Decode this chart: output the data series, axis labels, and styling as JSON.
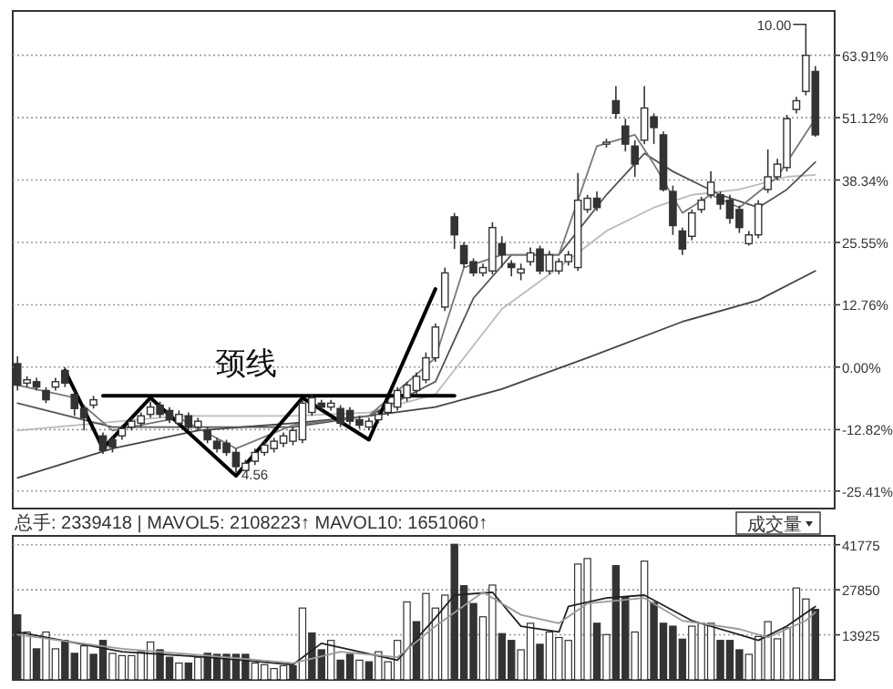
{
  "chart_data": [
    {
      "type": "candlestick",
      "color": "#333333",
      "grid": "y",
      "tick_labels": "y",
      "ylim": [
        -29,
        73
      ],
      "yticks": [
        {
          "value": -25.41,
          "label": "-25.41%"
        },
        {
          "value": -12.82,
          "label": "-12.82%"
        },
        {
          "value": 0,
          "label": "0.00%"
        },
        {
          "value": 12.76,
          "label": "12.76%"
        },
        {
          "value": 25.55,
          "label": "25.55%"
        },
        {
          "value": 38.34,
          "label": "38.34%"
        },
        {
          "value": 51.12,
          "label": "51.12%"
        },
        {
          "value": 63.91,
          "label": "63.91%"
        }
      ],
      "categories": [
        null,
        null,
        null,
        null,
        null,
        null,
        null,
        null,
        null,
        null,
        null,
        null,
        null,
        null,
        null,
        null,
        null,
        null,
        null,
        null,
        null,
        null,
        null,
        null,
        null,
        null,
        null,
        null,
        null,
        null,
        null,
        null,
        null,
        null,
        null,
        null,
        null,
        null,
        null,
        null,
        null,
        null,
        null,
        null,
        null,
        null,
        null,
        null,
        null,
        null,
        null,
        null,
        null,
        null,
        null,
        null,
        null,
        null,
        null,
        null,
        null,
        null,
        null,
        null,
        null,
        null,
        null,
        null,
        null,
        null,
        null,
        null,
        null,
        null,
        null,
        null,
        null,
        null,
        null,
        null,
        null,
        null,
        null,
        null,
        null
      ],
      "ohlc": [
        [
          0.7,
          2.2,
          -4.8,
          -3.7
        ],
        [
          -3.3,
          -1.9,
          -4.1,
          -2.6
        ],
        [
          -3.0,
          -2.2,
          -4.8,
          -4.1
        ],
        [
          -4.8,
          -4.1,
          -7.4,
          -6.7
        ],
        [
          -4.1,
          -2.2,
          -4.8,
          -3.0
        ],
        [
          -0.7,
          0,
          -4.1,
          -3.3
        ],
        [
          -5.6,
          -4.8,
          -10.0,
          -8.5
        ],
        [
          -8.5,
          -7.8,
          -13.0,
          -10.4
        ],
        [
          -7.8,
          -5.9,
          -8.5,
          -6.7
        ],
        [
          -14.1,
          -13.4,
          -17.8,
          -17.1
        ],
        [
          -14.9,
          -14.1,
          -17.5,
          -16.4
        ],
        [
          -14.1,
          -11.9,
          -14.9,
          -12.6
        ],
        [
          -12.3,
          -10.4,
          -13.0,
          -11.1
        ],
        [
          -11.5,
          -9.3,
          -12.3,
          -10.0
        ],
        [
          -9.7,
          -7.1,
          -10.4,
          -8.2
        ],
        [
          -7.8,
          -7.1,
          -10.4,
          -9.7
        ],
        [
          -8.9,
          -8.2,
          -11.5,
          -10.8
        ],
        [
          -11.5,
          -8.9,
          -12.3,
          -9.7
        ],
        [
          -10.0,
          -9.3,
          -13.0,
          -12.3
        ],
        [
          -12.3,
          -10.4,
          -13.0,
          -11.1
        ],
        [
          -13.0,
          -12.3,
          -15.6,
          -14.9
        ],
        [
          -15.2,
          -14.5,
          -17.5,
          -16.7
        ],
        [
          -15.6,
          -14.9,
          -18.2,
          -17.5
        ],
        [
          -17.5,
          -16.7,
          -21.6,
          -20.4
        ],
        [
          -21.2,
          -19.0,
          -21.2,
          -19.7
        ],
        [
          -19.3,
          -16.7,
          -20.1,
          -17.5
        ],
        [
          -17.5,
          -15.2,
          -18.2,
          -16.0
        ],
        [
          -16.7,
          -14.5,
          -17.5,
          -15.2
        ],
        [
          -15.6,
          -13.4,
          -16.4,
          -14.1
        ],
        [
          -15.2,
          -12.3,
          -16.0,
          -13.0
        ],
        [
          -14.9,
          -6.7,
          -15.6,
          -7.4
        ],
        [
          -9.3,
          -5.6,
          -10.0,
          -6.3
        ],
        [
          -7.4,
          -6.7,
          -8.9,
          -8.2
        ],
        [
          -8.2,
          -6.7,
          -8.9,
          -7.4
        ],
        [
          -8.5,
          -7.8,
          -12.3,
          -11.5
        ],
        [
          -8.9,
          -8.2,
          -11.9,
          -11.1
        ],
        [
          -10.8,
          -10.0,
          -12.6,
          -11.9
        ],
        [
          -12.3,
          -10.4,
          -13.0,
          -11.1
        ],
        [
          -10.8,
          -8.9,
          -11.5,
          -9.7
        ],
        [
          -9.3,
          -6.7,
          -10.0,
          -7.4
        ],
        [
          -8.2,
          -4.1,
          -8.9,
          -4.8
        ],
        [
          -6.3,
          -3.0,
          -7.1,
          -3.7
        ],
        [
          -4.8,
          -1.1,
          -5.6,
          -1.9
        ],
        [
          -2.6,
          3.0,
          -3.3,
          1.9
        ],
        [
          1.9,
          8.9,
          1.1,
          8.2
        ],
        [
          12.3,
          20.4,
          11.5,
          19.3
        ],
        [
          30.8,
          31.6,
          24.2,
          27.1
        ],
        [
          24.9,
          25.6,
          20.4,
          21.2
        ],
        [
          21.6,
          22.3,
          18.6,
          19.3
        ],
        [
          19.3,
          21.2,
          18.6,
          20.4
        ],
        [
          19.7,
          29.7,
          19.0,
          28.6
        ],
        [
          25.3,
          26.8,
          20.4,
          23.0
        ],
        [
          21.2,
          21.9,
          18.6,
          20.4
        ],
        [
          19.3,
          21.2,
          17.8,
          20.1
        ],
        [
          21.6,
          24.5,
          20.8,
          23.4
        ],
        [
          24.2,
          24.9,
          19.0,
          19.7
        ],
        [
          19.7,
          23.8,
          19.0,
          23.0
        ],
        [
          19.7,
          22.3,
          19.0,
          21.6
        ],
        [
          21.6,
          23.8,
          20.8,
          23.0
        ],
        [
          20.4,
          39.8,
          19.7,
          34.2
        ],
        [
          32.3,
          35.3,
          31.6,
          34.6
        ],
        [
          34.6,
          36.0,
          32.0,
          32.7
        ],
        [
          45.7,
          46.8,
          45.0,
          46.1
        ],
        [
          54.6,
          57.6,
          50.9,
          52.0
        ],
        [
          49.4,
          50.9,
          44.2,
          45.7
        ],
        [
          45.3,
          46.5,
          39.0,
          41.6
        ],
        [
          46.5,
          57.6,
          45.7,
          53.1
        ],
        [
          51.3,
          52.0,
          45.7,
          49.1
        ],
        [
          47.6,
          48.3,
          36.0,
          36.4
        ],
        [
          36.0,
          37.2,
          27.1,
          29.0
        ],
        [
          27.9,
          28.6,
          23.0,
          24.2
        ],
        [
          26.8,
          32.3,
          26.0,
          31.6
        ],
        [
          32.3,
          34.9,
          31.6,
          34.2
        ],
        [
          35.3,
          40.1,
          34.6,
          37.9
        ],
        [
          35.3,
          36.0,
          32.3,
          33.4
        ],
        [
          34.2,
          35.3,
          29.4,
          30.5
        ],
        [
          32.3,
          33.1,
          27.5,
          28.6
        ],
        [
          25.3,
          27.9,
          24.9,
          27.1
        ],
        [
          27.1,
          34.2,
          26.4,
          33.4
        ],
        [
          36.4,
          44.6,
          35.7,
          39.0
        ],
        [
          39.0,
          42.7,
          38.3,
          41.6
        ],
        [
          40.9,
          51.7,
          40.1,
          50.9
        ],
        [
          52.8,
          55.4,
          52.0,
          54.6
        ],
        [
          56.5,
          69.5,
          55.7,
          63.9
        ],
        [
          60.6,
          61.7,
          47.2,
          47.6
        ]
      ],
      "series": [
        {
          "type": "line",
          "color": "#444444",
          "values": [
            -22.7,
            null,
            null,
            null,
            null,
            null,
            null,
            null,
            null,
            null,
            -16.7,
            null,
            null,
            null,
            null,
            null,
            null,
            null,
            null,
            -13.0,
            null,
            null,
            null,
            null,
            null,
            null,
            null,
            null,
            null,
            -11.5,
            null,
            null,
            null,
            null,
            null,
            null,
            null,
            -10.0,
            null,
            null,
            null,
            null,
            null,
            null,
            -8.2,
            null,
            null,
            null,
            null,
            null,
            null,
            -4.5,
            null,
            null,
            null,
            null,
            null,
            null,
            null,
            null,
            1.9,
            null,
            null,
            null,
            null,
            null,
            null,
            null,
            null,
            null,
            9.3,
            null,
            null,
            null,
            null,
            null,
            null,
            null,
            13.7,
            null,
            null,
            null,
            null,
            null,
            19.7
          ]
        },
        {
          "type": "line",
          "color": "#bbbbbb",
          "values": [
            -13.0,
            null,
            null,
            null,
            null,
            null,
            null,
            null,
            null,
            null,
            null,
            null,
            null,
            null,
            null,
            null,
            null,
            -10.0,
            null,
            null,
            null,
            null,
            null,
            null,
            null,
            null,
            null,
            null,
            null,
            -10.0,
            null,
            null,
            null,
            null,
            null,
            null,
            null,
            -9.3,
            null,
            null,
            null,
            null,
            null,
            null,
            -5.6,
            null,
            null,
            null,
            null,
            null,
            null,
            11.9,
            null,
            null,
            null,
            null,
            null,
            20.4,
            null,
            null,
            null,
            null,
            27.9,
            null,
            null,
            null,
            null,
            32.7,
            null,
            null,
            null,
            35.3,
            null,
            null,
            null,
            null,
            36.4,
            null,
            null,
            null,
            null,
            39.0,
            null,
            null,
            39.4
          ]
        },
        {
          "type": "line",
          "color": "#555555",
          "values": [
            -7.4,
            null,
            null,
            null,
            null,
            null,
            null,
            null,
            null,
            null,
            -12.3,
            null,
            null,
            null,
            null,
            null,
            null,
            null,
            null,
            -12.3,
            null,
            null,
            null,
            null,
            null,
            null,
            null,
            null,
            null,
            -12.3,
            null,
            null,
            null,
            null,
            null,
            null,
            null,
            -10.0,
            null,
            null,
            null,
            null,
            null,
            null,
            -3.0,
            null,
            null,
            null,
            14.1,
            null,
            null,
            null,
            23.0,
            null,
            null,
            null,
            null,
            23.0,
            null,
            null,
            null,
            null,
            35.3,
            null,
            null,
            null,
            43.8,
            null,
            null,
            40.1,
            null,
            null,
            null,
            null,
            35.3,
            null,
            null,
            null,
            32.7,
            null,
            null,
            36.4,
            null,
            null,
            42.0
          ]
        },
        {
          "type": "line",
          "color": "#777777",
          "values": [
            -3.7,
            null,
            null,
            null,
            null,
            null,
            -6.3,
            null,
            null,
            null,
            -13.0,
            null,
            null,
            null,
            null,
            null,
            null,
            -10.4,
            null,
            null,
            null,
            null,
            null,
            -16.7,
            null,
            null,
            null,
            null,
            null,
            -11.9,
            null,
            null,
            null,
            null,
            null,
            null,
            null,
            -10.0,
            null,
            null,
            null,
            null,
            null,
            null,
            1.9,
            null,
            null,
            20.4,
            null,
            null,
            null,
            23.0,
            null,
            null,
            null,
            null,
            null,
            23.0,
            null,
            null,
            null,
            45.3,
            null,
            null,
            null,
            47.6,
            null,
            41.6,
            null,
            null,
            31.6,
            null,
            null,
            35.3,
            null,
            null,
            32.7,
            null,
            null,
            null,
            39.0,
            null,
            null,
            null,
            50.9
          ]
        },
        {
          "type": "line",
          "color": "#000000",
          "values": [
            null,
            null,
            null,
            null,
            null,
            -0.7,
            null,
            null,
            null,
            -16.7,
            null,
            null,
            null,
            null,
            -6.3,
            null,
            null,
            null,
            null,
            null,
            null,
            null,
            null,
            -22.3,
            null,
            null,
            null,
            null,
            null,
            null,
            -6.3,
            null,
            null,
            null,
            null,
            null,
            null,
            -14.9,
            null,
            null,
            null,
            null,
            null,
            null,
            16.0,
            null,
            null,
            null,
            null,
            null,
            null,
            null,
            null,
            null,
            null,
            null,
            null,
            null,
            null,
            null,
            null,
            null,
            null,
            null,
            null,
            null,
            null,
            null,
            null,
            null,
            null,
            null,
            null,
            null,
            null,
            null,
            null,
            null,
            null,
            null,
            null,
            null,
            null,
            null,
            null
          ]
        },
        {
          "type": "line",
          "color": "#000000",
          "name": "颈线",
          "values": [
            null,
            null,
            null,
            null,
            null,
            null,
            null,
            null,
            null,
            -5.9,
            null,
            null,
            null,
            null,
            null,
            null,
            null,
            null,
            null,
            null,
            null,
            null,
            null,
            null,
            null,
            null,
            null,
            null,
            null,
            null,
            null,
            null,
            null,
            null,
            null,
            null,
            null,
            null,
            null,
            null,
            null,
            null,
            null,
            null,
            null,
            null,
            -5.9,
            null,
            null,
            null,
            null,
            null,
            null,
            null,
            null,
            null,
            null,
            null,
            null,
            null,
            null,
            null,
            null,
            null,
            null,
            null,
            null,
            null,
            null,
            null,
            null,
            null,
            null,
            null,
            null,
            null,
            null,
            null,
            null,
            null,
            null,
            null,
            null,
            null,
            null
          ]
        }
      ],
      "annotations": [
        "10.00",
        {
          "text": "4.56",
          "y": -21.6
        }
      ]
    },
    {
      "type": "bar",
      "grid": "y",
      "tick_labels": "y",
      "ylim": [
        0,
        44500
      ],
      "yticks": [
        13925,
        27850,
        41775
      ],
      "title": "总手: 2339418 | MAVOL5: 2108223↑ MAVOL10: 1651060↑",
      "annotations": [
        "成交量"
      ],
      "categories": [
        null,
        null,
        null,
        null,
        null,
        null,
        null,
        null,
        null,
        null,
        null,
        null,
        null,
        null,
        null,
        null,
        null,
        null,
        null,
        null,
        null,
        null,
        null,
        null,
        null,
        null,
        null,
        null,
        null,
        null,
        null,
        null,
        null,
        null,
        null,
        null,
        null,
        null,
        null,
        null,
        null,
        null,
        null,
        null,
        null,
        null,
        null,
        null,
        null,
        null,
        null,
        null,
        null,
        null,
        null,
        null,
        null,
        null,
        null,
        null,
        null,
        null,
        null,
        null,
        null,
        null,
        null,
        null,
        null,
        null,
        null,
        null,
        null,
        null,
        null,
        null,
        null,
        null,
        null,
        null,
        null,
        null,
        null,
        null,
        null
      ],
      "values": [
        20100,
        14800,
        9600,
        14800,
        9600,
        12200,
        8200,
        10500,
        7900,
        12200,
        8200,
        7500,
        7500,
        8700,
        11700,
        9300,
        7000,
        5200,
        5200,
        7000,
        8200,
        7900,
        7900,
        7900,
        7900,
        5200,
        4700,
        3500,
        4400,
        4400,
        22200,
        14500,
        9300,
        12200,
        6100,
        7900,
        6100,
        5600,
        8700,
        5600,
        12200,
        24100,
        18000,
        26700,
        22200,
        26200,
        41900,
        29100,
        23600,
        19500,
        29300,
        14300,
        12200,
        9300,
        17500,
        11000,
        14800,
        13100,
        12200,
        35800,
        37500,
        17500,
        14000,
        35300,
        25700,
        14800,
        36700,
        23900,
        17500,
        16600,
        12600,
        16600,
        17500,
        17500,
        12200,
        12200,
        9300,
        7900,
        13400,
        18000,
        12700,
        16100,
        28400,
        25000,
        21800
      ],
      "colors": [
        "#333333",
        "#ffffff",
        "#333333",
        "#ffffff",
        "#ffffff",
        "#333333",
        "#333333",
        "#ffffff",
        "#333333",
        "#333333",
        "#ffffff",
        "#ffffff",
        "#ffffff",
        "#ffffff",
        "#ffffff",
        "#333333",
        "#333333",
        "#ffffff",
        "#333333",
        "#ffffff",
        "#333333",
        "#333333",
        "#333333",
        "#333333",
        "#333333",
        "#ffffff",
        "#ffffff",
        "#ffffff",
        "#ffffff",
        "#333333",
        "#ffffff",
        "#333333",
        "#333333",
        "#ffffff",
        "#333333",
        "#333333",
        "#ffffff",
        "#333333",
        "#ffffff",
        "#ffffff",
        "#ffffff",
        "#ffffff",
        "#333333",
        "#ffffff",
        "#ffffff",
        "#ffffff",
        "#333333",
        "#333333",
        "#333333",
        "#ffffff",
        "#ffffff",
        "#333333",
        "#333333",
        "#ffffff",
        "#ffffff",
        "#333333",
        "#ffffff",
        "#ffffff",
        "#ffffff",
        "#ffffff",
        "#ffffff",
        "#333333",
        "#ffffff",
        "#333333",
        "#333333",
        "#ffffff",
        "#ffffff",
        "#333333",
        "#333333",
        "#333333",
        "#333333",
        "#ffffff",
        "#ffffff",
        "#ffffff",
        "#333333",
        "#333333",
        "#333333",
        "#ffffff",
        "#ffffff",
        "#ffffff",
        "#ffffff",
        "#ffffff",
        "#ffffff",
        "#ffffff",
        "#333333"
      ],
      "series": [
        {
          "type": "line",
          "color": "#222222",
          "values": [
            14800,
            null,
            null,
            null,
            null,
            null,
            null,
            null,
            null,
            null,
            null,
            8700,
            null,
            null,
            null,
            null,
            null,
            null,
            null,
            null,
            7000,
            null,
            null,
            null,
            null,
            null,
            null,
            null,
            null,
            4700,
            null,
            null,
            11300,
            null,
            null,
            null,
            null,
            null,
            null,
            null,
            6100,
            null,
            null,
            null,
            19200,
            null,
            26200,
            null,
            null,
            null,
            27100,
            null,
            null,
            16600,
            null,
            null,
            null,
            14800,
            22700,
            null,
            null,
            null,
            25300,
            null,
            null,
            null,
            26200,
            null,
            null,
            null,
            null,
            18300,
            null,
            null,
            null,
            null,
            14000,
            null,
            12200,
            null,
            null,
            16600,
            null,
            null,
            22700
          ]
        },
        {
          "type": "line",
          "color": "#999999",
          "values": [
            14000,
            null,
            null,
            null,
            null,
            null,
            null,
            null,
            null,
            null,
            null,
            9600,
            null,
            null,
            null,
            null,
            null,
            null,
            null,
            null,
            7500,
            null,
            null,
            null,
            null,
            null,
            null,
            null,
            null,
            5200,
            null,
            null,
            null,
            null,
            8700,
            null,
            null,
            null,
            null,
            null,
            7000,
            null,
            null,
            null,
            16600,
            null,
            null,
            null,
            null,
            27100,
            null,
            null,
            null,
            20100,
            null,
            null,
            null,
            17500,
            null,
            null,
            23600,
            null,
            null,
            null,
            null,
            null,
            25300,
            null,
            null,
            null,
            18300,
            null,
            null,
            null,
            null,
            null,
            15700,
            null,
            null,
            13100,
            null,
            null,
            null,
            18300,
            20900
          ]
        }
      ]
    }
  ]
}
